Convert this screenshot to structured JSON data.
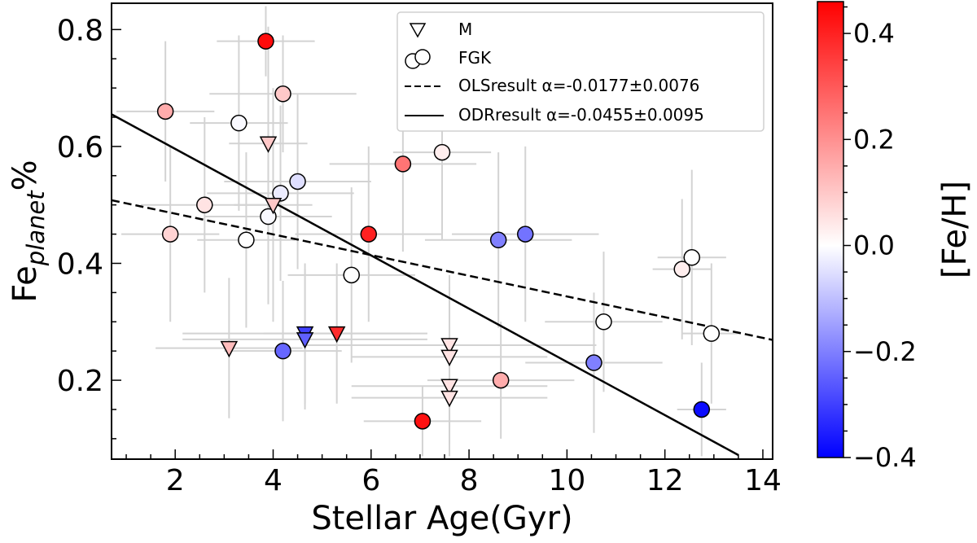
{
  "chart_data": {
    "type": "scatter",
    "xlabel": "Stellar Age(Gyr)",
    "ylabel_main": "Fe",
    "ylabel_sub": "planet",
    "ylabel_suffix": "%",
    "xlim": [
      0.7,
      14.2
    ],
    "ylim": [
      0.065,
      0.845
    ],
    "xticks": [
      2,
      4,
      6,
      8,
      10,
      12,
      14
    ],
    "yticks": [
      0.2,
      0.4,
      0.6,
      0.8
    ],
    "xtick_labels": [
      "2",
      "4",
      "6",
      "8",
      "10",
      "12",
      "14"
    ],
    "ytick_labels": [
      "0.2",
      "0.4",
      "0.6",
      "0.8"
    ],
    "colorbar": {
      "label": "[Fe/H]",
      "range": [
        -0.4,
        0.46
      ],
      "ticks": [
        -0.4,
        -0.2,
        0.0,
        0.2,
        0.4
      ],
      "tick_labels": [
        "−0.4",
        "−0.2",
        "0.0",
        "0.2",
        "0.4"
      ],
      "low_color": "#0000ff",
      "mid_color": "#ffffff",
      "high_color": "#ff0000"
    },
    "legend": {
      "position": "top-right",
      "entries": [
        {
          "marker": "triangle-down",
          "label": "M"
        },
        {
          "marker": "circle",
          "label": "FGK"
        },
        {
          "marker": "dashed-line",
          "label": "OLSresult α=-0.0177±0.0076"
        },
        {
          "marker": "solid-line",
          "label": "ODRresult α=-0.0455±0.0095"
        }
      ]
    },
    "fits": [
      {
        "name": "OLS",
        "style": "dashed",
        "x": [
          0.7,
          14.2
        ],
        "y": [
          0.508,
          0.269
        ]
      },
      {
        "name": "ODR",
        "style": "solid",
        "x": [
          0.7,
          13.5
        ],
        "y": [
          0.655,
          0.072
        ]
      }
    ],
    "series": [
      {
        "name": "FGK",
        "marker": "circle",
        "points": [
          {
            "x": 3.85,
            "y": 0.78,
            "feh": 0.44,
            "xerr": 1.0,
            "yerr": 0.06
          },
          {
            "x": 4.2,
            "y": 0.69,
            "feh": 0.1,
            "xerr": 1.5,
            "yerr": 0.1
          },
          {
            "x": 1.8,
            "y": 0.66,
            "feh": 0.15,
            "xerr": 1.0,
            "yerr": 0.12
          },
          {
            "x": 3.3,
            "y": 0.64,
            "feh": -0.01,
            "xerr": 1.0,
            "yerr": 0.15
          },
          {
            "x": 7.45,
            "y": 0.59,
            "feh": 0.03,
            "xerr": 1.0,
            "yerr": 0.15
          },
          {
            "x": 6.65,
            "y": 0.57,
            "feh": 0.25,
            "xerr": 1.5,
            "yerr": 0.15
          },
          {
            "x": 4.5,
            "y": 0.54,
            "feh": -0.05,
            "xerr": 1.5,
            "yerr": 0.15
          },
          {
            "x": 4.15,
            "y": 0.52,
            "feh": -0.03,
            "xerr": 1.5,
            "yerr": 0.15
          },
          {
            "x": 2.6,
            "y": 0.5,
            "feh": 0.05,
            "xerr": 1.3,
            "yerr": 0.15
          },
          {
            "x": 3.9,
            "y": 0.48,
            "feh": -0.01,
            "xerr": 1.3,
            "yerr": 0.15
          },
          {
            "x": 1.9,
            "y": 0.45,
            "feh": 0.08,
            "xerr": 1.0,
            "yerr": 0.15
          },
          {
            "x": 3.45,
            "y": 0.44,
            "feh": 0.0,
            "xerr": 1.0,
            "yerr": 0.15
          },
          {
            "x": 5.95,
            "y": 0.45,
            "feh": 0.4,
            "xerr": 1.5,
            "yerr": 0.15
          },
          {
            "x": 5.6,
            "y": 0.38,
            "feh": 0.0,
            "xerr": 1.3,
            "yerr": 0.15
          },
          {
            "x": 8.6,
            "y": 0.44,
            "feh": -0.2,
            "xerr": 1.5,
            "yerr": 0.15
          },
          {
            "x": 9.15,
            "y": 0.45,
            "feh": -0.22,
            "xerr": 1.5,
            "yerr": 0.15
          },
          {
            "x": 4.2,
            "y": 0.25,
            "feh": -0.24,
            "xerr": 1.2,
            "yerr": 0.12
          },
          {
            "x": 8.65,
            "y": 0.2,
            "feh": 0.15,
            "xerr": 1.5,
            "yerr": 0.1
          },
          {
            "x": 7.05,
            "y": 0.13,
            "feh": 0.43,
            "xerr": 1.2,
            "yerr": 0.06
          },
          {
            "x": 10.55,
            "y": 0.23,
            "feh": -0.2,
            "xerr": 1.4,
            "yerr": 0.12
          },
          {
            "x": 10.75,
            "y": 0.3,
            "feh": 0.0,
            "xerr": 1.2,
            "yerr": 0.12
          },
          {
            "x": 12.35,
            "y": 0.39,
            "feh": 0.03,
            "xerr": 0.6,
            "yerr": 0.12
          },
          {
            "x": 12.55,
            "y": 0.41,
            "feh": 0.0,
            "xerr": 0.7,
            "yerr": 0.15
          },
          {
            "x": 12.95,
            "y": 0.28,
            "feh": 0.0,
            "xerr": 0.6,
            "yerr": 0.12
          },
          {
            "x": 12.75,
            "y": 0.15,
            "feh": -0.38,
            "xerr": 0.5,
            "yerr": 0.08
          }
        ]
      },
      {
        "name": "M",
        "marker": "triangle-down",
        "points": [
          {
            "x": 3.9,
            "y": 0.605,
            "feh": 0.1,
            "xerr": 0.8,
            "yerr": 0.2
          },
          {
            "x": 4.0,
            "y": 0.5,
            "feh": 0.1,
            "xerr": 0.8,
            "yerr": 0.2
          },
          {
            "x": 3.1,
            "y": 0.255,
            "feh": 0.12,
            "xerr": 1.5,
            "yerr": 0.12
          },
          {
            "x": 4.65,
            "y": 0.28,
            "feh": -0.3,
            "xerr": 2.5,
            "yerr": 0.12
          },
          {
            "x": 4.65,
            "y": 0.27,
            "feh": -0.25,
            "xerr": 2.5,
            "yerr": 0.12
          },
          {
            "x": 5.3,
            "y": 0.28,
            "feh": 0.38,
            "xerr": 1.5,
            "yerr": 0.12
          },
          {
            "x": 7.6,
            "y": 0.26,
            "feh": 0.05,
            "xerr": 3.0,
            "yerr": 0.12
          },
          {
            "x": 7.6,
            "y": 0.24,
            "feh": 0.05,
            "xerr": 2.0,
            "yerr": 0.12
          },
          {
            "x": 7.6,
            "y": 0.19,
            "feh": 0.05,
            "xerr": 2.0,
            "yerr": 0.1
          },
          {
            "x": 7.6,
            "y": 0.17,
            "feh": 0.05,
            "xerr": 2.0,
            "yerr": 0.1
          }
        ]
      }
    ]
  }
}
